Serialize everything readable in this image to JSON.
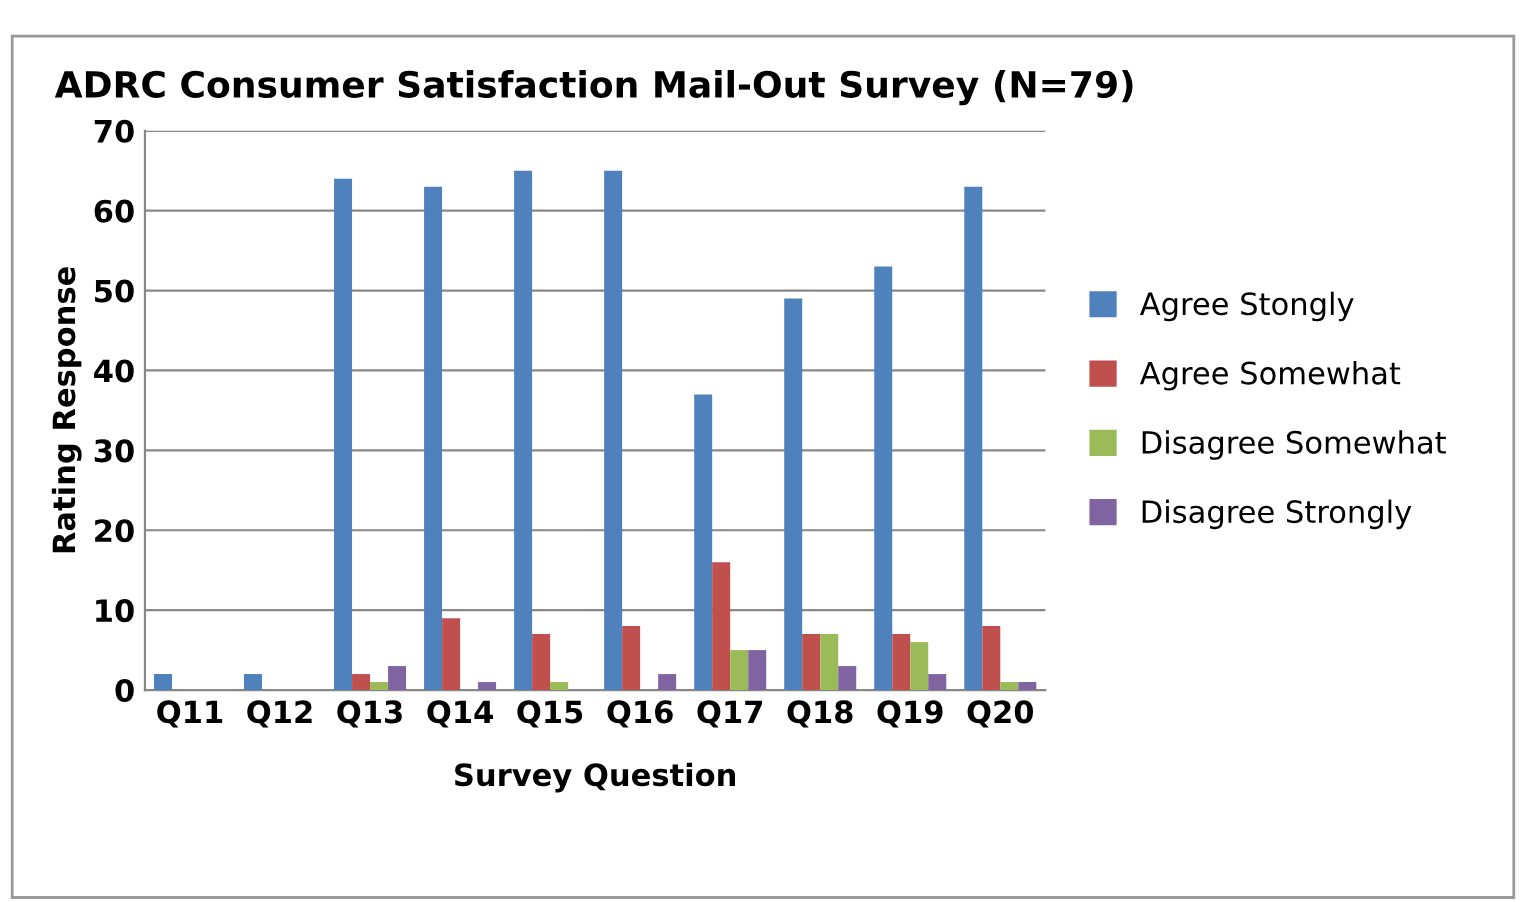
{
  "chart_data": {
    "type": "bar",
    "title": "ADRC Consumer Satisfaction Mail-Out Survey (N=79)",
    "xlabel": "Survey Question",
    "ylabel": "Rating Response",
    "categories": [
      "Q11",
      "Q12",
      "Q13",
      "Q14",
      "Q15",
      "Q16",
      "Q17",
      "Q18",
      "Q19",
      "Q20"
    ],
    "series": [
      {
        "name": "Agree Stongly",
        "color": "#4f81bd",
        "values": [
          2,
          2,
          64,
          63,
          65,
          65,
          37,
          49,
          53,
          63
        ]
      },
      {
        "name": "Agree Somewhat",
        "color": "#c0504d",
        "values": [
          0,
          0,
          2,
          9,
          7,
          8,
          16,
          7,
          7,
          8
        ]
      },
      {
        "name": "Disagree Somewhat",
        "color": "#9bbb59",
        "values": [
          0,
          0,
          1,
          0,
          1,
          0,
          5,
          7,
          6,
          1
        ]
      },
      {
        "name": "Disagree Strongly",
        "color": "#8064a2",
        "values": [
          0,
          0,
          3,
          1,
          0,
          2,
          5,
          3,
          2,
          1
        ]
      }
    ],
    "ylim": [
      0,
      70
    ],
    "yticks": [
      0,
      10,
      20,
      30,
      40,
      50,
      60,
      70
    ],
    "grid": "y",
    "legend": "right"
  }
}
